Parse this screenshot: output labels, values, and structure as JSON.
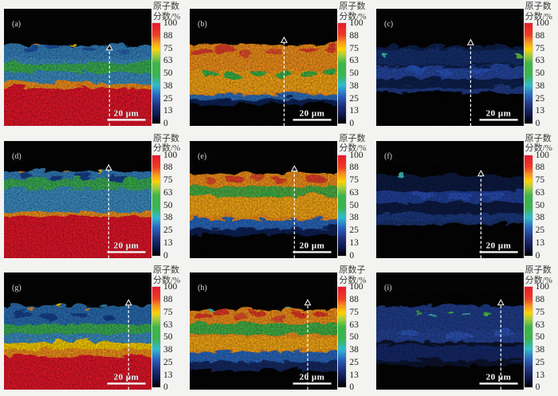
{
  "figure": {
    "scale_label": "20 μm",
    "colorbar": {
      "ticks": [
        "100",
        "88",
        "75",
        "63",
        "50",
        "38",
        "25",
        "13",
        "0"
      ],
      "gradient": [
        [
          "#e8192c",
          0
        ],
        [
          "#ee3d24",
          0.12
        ],
        [
          "#f7941d",
          0.19
        ],
        [
          "#ffd200",
          0.26
        ],
        [
          "#a6ce39",
          0.32
        ],
        [
          "#3db54a",
          0.4
        ],
        [
          "#3ab54f",
          0.52
        ],
        [
          "#2fbcd0",
          0.62
        ],
        [
          "#2a64c2",
          0.72
        ],
        [
          "#20327e",
          0.82
        ],
        [
          "#101b52",
          0.9
        ],
        [
          "#05051a",
          0.97
        ],
        [
          "#000000",
          1
        ]
      ]
    },
    "panels": [
      {
        "id": "a",
        "label": "(a)",
        "title_lines": [
          "原子数",
          "分数/%"
        ],
        "seed": 3,
        "spk": 0.28,
        "arrow": {
          "x": 0.715,
          "tip": 0.315
        },
        "bands": [
          [
            "#3c8fc4",
            0.295,
            0.665,
            1
          ],
          [
            "#2f73b8",
            0.295,
            0.4,
            0.5
          ],
          [
            "#3bb54a",
            0.445,
            0.525,
            0.9
          ],
          [
            "#f7941d",
            0.615,
            0.665,
            1
          ],
          [
            "#e8192c",
            0.655,
            1.08,
            1
          ]
        ],
        "blobs": [
          [
            0.17,
            0.33,
            0.055,
            0.03,
            "#1d55a8"
          ],
          [
            0.31,
            0.3,
            0.04,
            0.022,
            "#1d55a8"
          ],
          [
            0.56,
            0.33,
            0.05,
            0.026,
            "#1d55a8"
          ],
          [
            0.8,
            0.34,
            0.045,
            0.022,
            "#2a63b0"
          ],
          [
            0.08,
            0.48,
            0.05,
            0.018,
            "#3bb54a"
          ],
          [
            0.7,
            0.5,
            0.06,
            0.02,
            "#3bb54a"
          ],
          [
            0.21,
            0.295,
            0.025,
            0.008,
            "#f7941d"
          ],
          [
            0.45,
            0.285,
            0.02,
            0.007,
            "#ffd200"
          ]
        ]
      },
      {
        "id": "b",
        "label": "(b)",
        "title_lines": [
          "原子数",
          "分数/%"
        ],
        "seed": 11,
        "spk": 0.27,
        "arrow": {
          "x": 0.64,
          "tip": 0.25
        },
        "bands": [
          [
            "#f7941d",
            0.285,
            0.74,
            1
          ],
          [
            "#ffc20e",
            0.52,
            0.7,
            0.45
          ],
          [
            "#2f6fbf",
            0.715,
            0.765,
            1
          ],
          [
            "#13265e",
            0.755,
            0.8,
            0.9
          ]
        ],
        "blobs": [
          [
            0.07,
            0.35,
            0.065,
            0.035,
            "#e8402a"
          ],
          [
            0.22,
            0.33,
            0.075,
            0.04,
            "#e8402a"
          ],
          [
            0.38,
            0.36,
            0.055,
            0.03,
            "#ea512c"
          ],
          [
            0.56,
            0.34,
            0.05,
            0.028,
            "#ea512c"
          ],
          [
            0.79,
            0.34,
            0.065,
            0.03,
            "#e8402a"
          ],
          [
            0.94,
            0.33,
            0.045,
            0.028,
            "#e8402a"
          ],
          [
            0.13,
            0.53,
            0.05,
            0.022,
            "#3bb54a"
          ],
          [
            0.28,
            0.555,
            0.06,
            0.024,
            "#3bb54a"
          ],
          [
            0.46,
            0.525,
            0.045,
            0.02,
            "#3bb54a"
          ],
          [
            0.62,
            0.55,
            0.055,
            0.022,
            "#3bb54a"
          ],
          [
            0.8,
            0.545,
            0.05,
            0.02,
            "#3bb54a"
          ],
          [
            0.93,
            0.52,
            0.04,
            0.018,
            "#3bb54a"
          ]
        ]
      },
      {
        "id": "c",
        "label": "(c)",
        "title_lines": [
          "原子数",
          "分数/%"
        ],
        "seed": 23,
        "spk": 0.28,
        "arrow": {
          "x": 0.64,
          "tip": 0.27
        },
        "bands": [
          [
            "#13245c",
            0.3,
            0.7,
            0.85
          ],
          [
            "#1e3a85",
            0.33,
            0.46,
            0.6
          ],
          [
            "#2b57c0",
            0.475,
            0.575,
            0.75
          ],
          [
            "#23439a",
            0.655,
            0.695,
            0.8
          ]
        ],
        "blobs": [
          [
            0.25,
            0.5,
            0.07,
            0.03,
            "#2b57c0"
          ],
          [
            0.45,
            0.52,
            0.06,
            0.025,
            "#2b57c0"
          ],
          [
            0.7,
            0.51,
            0.08,
            0.03,
            "#2b57c0"
          ],
          [
            0.06,
            0.37,
            0.022,
            0.013,
            "#38c8b4"
          ],
          [
            0.955,
            0.385,
            0.024,
            0.015,
            "#5ecb3e"
          ]
        ]
      },
      {
        "id": "d",
        "label": "(d)",
        "title_lines": [
          "原子数",
          "分数/%"
        ],
        "seed": 31,
        "spk": 0.22,
        "arrow": {
          "x": 0.71,
          "tip": 0.21
        },
        "bands": [
          [
            "#3c8fc4",
            0.235,
            0.62,
            1
          ],
          [
            "#2f73b8",
            0.235,
            0.33,
            0.5
          ],
          [
            "#3bb54a",
            0.3,
            0.39,
            0.9
          ],
          [
            "#f7941d",
            0.585,
            0.63,
            1
          ],
          [
            "#e8192c",
            0.62,
            1.08,
            1
          ]
        ],
        "blobs": [
          [
            0.14,
            0.27,
            0.05,
            0.028,
            "#16428f"
          ],
          [
            0.33,
            0.29,
            0.045,
            0.025,
            "#16428f"
          ],
          [
            0.52,
            0.275,
            0.05,
            0.028,
            "#16428f"
          ],
          [
            0.75,
            0.3,
            0.06,
            0.03,
            "#16428f"
          ],
          [
            0.85,
            0.345,
            0.05,
            0.02,
            "#3bb54a"
          ],
          [
            0.1,
            0.24,
            0.02,
            0.008,
            "#f7941d"
          ],
          [
            0.4,
            0.235,
            0.022,
            0.008,
            "#f7941d"
          ],
          [
            0.63,
            0.245,
            0.018,
            0.007,
            "#ffd200"
          ]
        ]
      },
      {
        "id": "e",
        "label": "(e)",
        "title_lines": [
          "原子数",
          "分数/%"
        ],
        "seed": 47,
        "spk": 0.24,
        "arrow": {
          "x": 0.71,
          "tip": 0.22
        },
        "bands": [
          [
            "#f7941d",
            0.255,
            0.655,
            1
          ],
          [
            "#ffc20e",
            0.46,
            0.63,
            0.5
          ],
          [
            "#3bb54a",
            0.37,
            0.455,
            0.9
          ],
          [
            "#2a69c0",
            0.65,
            0.735,
            1
          ],
          [
            "#13265e",
            0.725,
            0.785,
            0.9
          ]
        ],
        "blobs": [
          [
            0.13,
            0.315,
            0.04,
            0.022,
            "#ea512c"
          ],
          [
            0.3,
            0.3,
            0.06,
            0.03,
            "#e8402a"
          ],
          [
            0.44,
            0.285,
            0.05,
            0.028,
            "#ea512c"
          ],
          [
            0.585,
            0.31,
            0.055,
            0.028,
            "#e8402a"
          ],
          [
            0.84,
            0.3,
            0.07,
            0.032,
            "#e8402a"
          ],
          [
            0.1,
            0.42,
            0.05,
            0.02,
            "#3bb54a"
          ],
          [
            0.52,
            0.43,
            0.06,
            0.022,
            "#3bb54a"
          ]
        ]
      },
      {
        "id": "f",
        "label": "(f)",
        "title_lines": [
          "原子数",
          "分数/%"
        ],
        "seed": 55,
        "spk": 0.26,
        "arrow": {
          "x": 0.71,
          "tip": 0.26
        },
        "bands": [
          [
            "#101f4f",
            0.28,
            0.66,
            0.85
          ],
          [
            "#2a50b8",
            0.405,
            0.51,
            0.75
          ],
          [
            "#24489f",
            0.6,
            0.69,
            0.7
          ]
        ],
        "blobs": [
          [
            0.3,
            0.44,
            0.07,
            0.03,
            "#2a50b8"
          ],
          [
            0.55,
            0.46,
            0.08,
            0.03,
            "#2a50b8"
          ],
          [
            0.78,
            0.45,
            0.07,
            0.028,
            "#2a50b8"
          ],
          [
            0.145,
            0.275,
            0.026,
            0.016,
            "#3ec8c8"
          ]
        ]
      },
      {
        "id": "g",
        "label": "(g)",
        "title_lines": [
          "原子数",
          "分数/%"
        ],
        "seed": 61,
        "spk": 0.26,
        "arrow": {
          "x": 0.845,
          "tip": 0.24
        },
        "bands": [
          [
            "#3c8fc4",
            0.27,
            0.61,
            1
          ],
          [
            "#1f53a8",
            0.275,
            0.42,
            0.55
          ],
          [
            "#3bb54a",
            0.42,
            0.505,
            0.9
          ],
          [
            "#ffd200",
            0.575,
            0.645,
            1
          ],
          [
            "#f7941d",
            0.635,
            0.705,
            1
          ],
          [
            "#e8192c",
            0.695,
            1.08,
            1
          ]
        ],
        "blobs": [
          [
            0.12,
            0.34,
            0.055,
            0.03,
            "#16428f"
          ],
          [
            0.3,
            0.355,
            0.06,
            0.03,
            "#16428f"
          ],
          [
            0.5,
            0.345,
            0.055,
            0.028,
            "#16428f"
          ],
          [
            0.7,
            0.36,
            0.05,
            0.026,
            "#16428f"
          ],
          [
            0.16,
            0.285,
            0.02,
            0.008,
            "#f7941d"
          ],
          [
            0.35,
            0.275,
            0.02,
            0.008,
            "#ffd200"
          ],
          [
            0.55,
            0.285,
            0.018,
            0.007,
            "#f7941d"
          ]
        ]
      },
      {
        "id": "h",
        "label": "(h)",
        "title_lines": [
          "原数子",
          "分数/%"
        ],
        "seed": 74,
        "spk": 0.28,
        "arrow": {
          "x": 0.8,
          "tip": 0.24
        },
        "bands": [
          [
            "#f7941d",
            0.295,
            0.66,
            1
          ],
          [
            "#3bb54a",
            0.415,
            0.51,
            0.95
          ],
          [
            "#ffc20e",
            0.53,
            0.645,
            0.5
          ],
          [
            "#2a69c0",
            0.655,
            0.75,
            1
          ],
          [
            "#152a68",
            0.74,
            0.815,
            0.95
          ]
        ],
        "blobs": [
          [
            0.08,
            0.345,
            0.05,
            0.028,
            "#e83a28"
          ],
          [
            0.19,
            0.325,
            0.055,
            0.03,
            "#e83a28"
          ],
          [
            0.32,
            0.36,
            0.05,
            0.026,
            "#ea512c"
          ],
          [
            0.45,
            0.335,
            0.06,
            0.03,
            "#e83a28"
          ],
          [
            0.59,
            0.37,
            0.05,
            0.026,
            "#ea512c"
          ],
          [
            0.72,
            0.345,
            0.055,
            0.028,
            "#e83a28"
          ],
          [
            0.87,
            0.335,
            0.05,
            0.026,
            "#e83a28"
          ],
          [
            0.13,
            0.295,
            0.02,
            0.01,
            "#38c8c8"
          ],
          [
            0.65,
            0.29,
            0.02,
            0.01,
            "#38c8c8"
          ]
        ]
      },
      {
        "id": "i",
        "label": "(i)",
        "title_lines": [
          "原子数",
          "分数/%"
        ],
        "seed": 88,
        "spk": 0.24,
        "arrow": {
          "x": 0.845,
          "tip": 0.24
        },
        "bands": [
          [
            "#0c1840",
            0.26,
            0.78,
            0.7
          ],
          [
            "#27489f",
            0.265,
            0.475,
            0.85
          ],
          [
            "#2d55bb",
            0.475,
            0.57,
            0.75
          ],
          [
            "#16307a",
            0.6,
            0.73,
            0.8
          ]
        ],
        "blobs": [
          [
            0.2,
            0.5,
            0.08,
            0.03,
            "#2d55bb"
          ],
          [
            0.55,
            0.52,
            0.09,
            0.03,
            "#2d55bb"
          ],
          [
            0.85,
            0.5,
            0.07,
            0.028,
            "#2d55bb"
          ],
          [
            0.27,
            0.325,
            0.022,
            0.013,
            "#51d04a"
          ],
          [
            0.37,
            0.35,
            0.02,
            0.012,
            "#3ec8c8"
          ],
          [
            0.5,
            0.325,
            0.024,
            0.014,
            "#51d04a"
          ],
          [
            0.6,
            0.345,
            0.02,
            0.012,
            "#3ec8c8"
          ],
          [
            0.74,
            0.33,
            0.022,
            0.012,
            "#51d04a"
          ]
        ]
      }
    ]
  }
}
